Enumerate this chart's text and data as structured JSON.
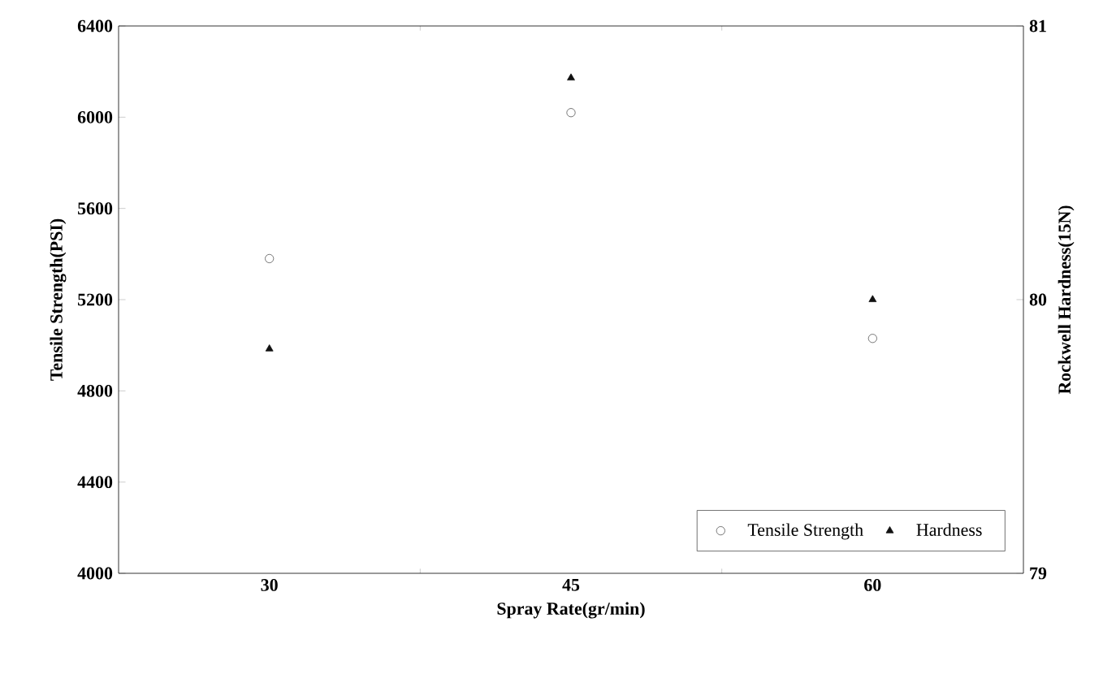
{
  "chart_data": {
    "type": "scatter",
    "xlabel": "Spray Rate(gr/min)",
    "ylabel": "Tensile Strength(PSI)",
    "y2label": "Rockwell Hardness(15N)",
    "categories": [
      "30",
      "45",
      "60"
    ],
    "ylim": [
      4000,
      6400
    ],
    "yticks": [
      4000,
      4400,
      4800,
      5200,
      5600,
      6000,
      6400
    ],
    "y2lim": [
      79,
      81
    ],
    "y2ticks": [
      79,
      80,
      81
    ],
    "legend": "bottom right",
    "grid": false,
    "series": [
      {
        "name": "Tensile Strength",
        "color": "#555555",
        "marker": "circle",
        "values": [
          5380,
          6020,
          5030
        ]
      },
      {
        "name": "Hardness",
        "color": "#111111",
        "marker": "triangle",
        "axis": "y2",
        "values": [
          79.82,
          80.81,
          80.0
        ]
      }
    ]
  }
}
